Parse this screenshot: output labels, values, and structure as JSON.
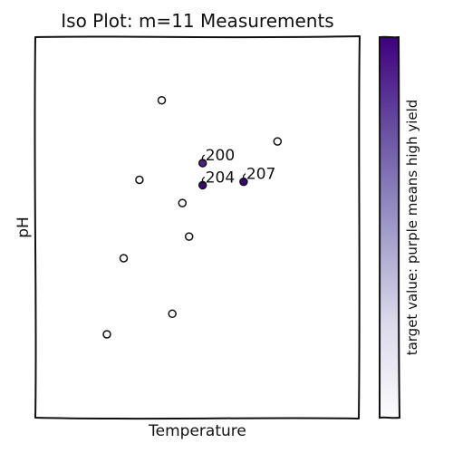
{
  "chart_data": {
    "type": "scatter",
    "title": "Iso Plot: m=11 Measurements",
    "xlabel": "Temperature",
    "ylabel": "pH",
    "xlim": [
      0,
      1
    ],
    "ylim": [
      0,
      1
    ],
    "x_ticks": [],
    "y_ticks": [],
    "grid": false,
    "colorbar": {
      "label": "target value: purple means high yield",
      "colormap": "Purples",
      "range": [
        0,
        1
      ],
      "low_color": "#fcfbfd",
      "high_color": "#3f007d"
    },
    "points": [
      {
        "x": 0.389,
        "y": 0.834,
        "value": 0.0
      },
      {
        "x": 0.748,
        "y": 0.726,
        "value": 0.0
      },
      {
        "x": 0.32,
        "y": 0.625,
        "value": 0.0
      },
      {
        "x": 0.453,
        "y": 0.564,
        "value": 0.0
      },
      {
        "x": 0.474,
        "y": 0.476,
        "value": 0.0
      },
      {
        "x": 0.271,
        "y": 0.419,
        "value": 0.0
      },
      {
        "x": 0.422,
        "y": 0.273,
        "value": 0.0
      },
      {
        "x": 0.219,
        "y": 0.219,
        "value": 0.0
      },
      {
        "x": 0.516,
        "y": 0.669,
        "value": 0.9,
        "label": "200"
      },
      {
        "x": 0.516,
        "y": 0.611,
        "value": 1.0,
        "label": "204"
      },
      {
        "x": 0.643,
        "y": 0.62,
        "value": 1.0,
        "label": "207"
      }
    ]
  }
}
